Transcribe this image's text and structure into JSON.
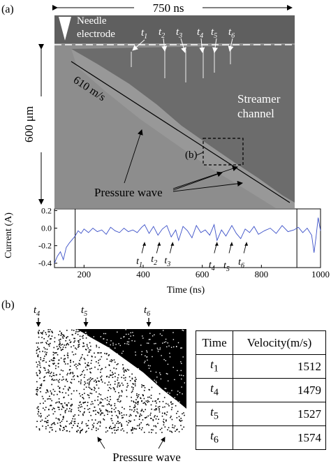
{
  "panel_a": {
    "label": "(a)",
    "duration": "750 ns",
    "height": "600 μm",
    "needle_line1": "Needle",
    "needle_line2": "electrode",
    "velocity": "610 m/s",
    "streamer_line1": "Streamer",
    "streamer_line2": "channel",
    "inset_label": "(b)",
    "pressure_wave": "Pressure wave",
    "times": [
      "1",
      "2",
      "3",
      "4",
      "5",
      "6"
    ],
    "colors": {
      "image_bg": "#8d8d8d",
      "top_band": "#5f5f5f",
      "dark_region": "#6c6c6c",
      "streamer_dash": "#ffffff"
    }
  },
  "chart_data": {
    "type": "line",
    "title": "",
    "xlabel": "Time (ns)",
    "ylabel": "Current (A)",
    "xlim": [
      100,
      1000
    ],
    "ylim": [
      -0.45,
      0.22
    ],
    "xticks": [
      "200",
      "400",
      "600",
      "800",
      "1000"
    ],
    "yticks": [
      "0.2",
      "0.0",
      "-0.2",
      "-0.4"
    ],
    "window_markers_x": [
      170,
      920
    ],
    "series": [
      {
        "color": "#3b50c8",
        "x": [
          100,
          110,
          120,
          130,
          140,
          150,
          160,
          170,
          180,
          190,
          200,
          215,
          230,
          245,
          260,
          275,
          290,
          305,
          320,
          335,
          350,
          365,
          380,
          395,
          405,
          420,
          435,
          450,
          465,
          480,
          495,
          510,
          520,
          535,
          550,
          565,
          580,
          595,
          610,
          625,
          640,
          650,
          665,
          680,
          700,
          715,
          730,
          745,
          760,
          775,
          790,
          810,
          830,
          850,
          870,
          890,
          910,
          925,
          940,
          955,
          970,
          978,
          985,
          992,
          1000
        ],
        "y": [
          -0.4,
          -0.32,
          -0.27,
          -0.36,
          -0.22,
          -0.17,
          -0.13,
          -0.09,
          -0.03,
          -0.06,
          -0.01,
          -0.05,
          0.0,
          -0.04,
          -0.02,
          -0.07,
          0.01,
          -0.03,
          -0.05,
          0.0,
          -0.04,
          -0.02,
          -0.05,
          0.01,
          0.04,
          -0.06,
          0.02,
          -0.08,
          -0.01,
          0.03,
          -0.1,
          -0.02,
          -0.14,
          0.02,
          -0.03,
          -0.11,
          0.03,
          -0.05,
          -0.02,
          -0.08,
          0.04,
          -0.14,
          -0.02,
          -0.09,
          0.03,
          -0.06,
          -0.12,
          -0.01,
          -0.05,
          0.02,
          -0.07,
          -0.03,
          0.0,
          -0.06,
          0.03,
          -0.04,
          -0.02,
          0.01,
          -0.05,
          0.0,
          -0.08,
          -0.28,
          -0.1,
          0.12,
          -0.03
        ]
      }
    ],
    "markers": [
      {
        "label": "1",
        "x": 405
      },
      {
        "label": "2",
        "x": 455
      },
      {
        "label": "3",
        "x": 500
      },
      {
        "label": "4",
        "x": 650
      },
      {
        "label": "5",
        "x": 700
      },
      {
        "label": "6",
        "x": 750
      }
    ]
  },
  "panel_b": {
    "label": "(b)",
    "times": [
      "4",
      "5",
      "6"
    ],
    "pressure_wave": "Pressure wave",
    "table": {
      "headers": [
        "Time",
        "Velocity(m/s)"
      ],
      "rows": [
        {
          "t": "1",
          "velocity": "1512"
        },
        {
          "t": "4",
          "velocity": "1479"
        },
        {
          "t": "5",
          "velocity": "1527"
        },
        {
          "t": "6",
          "velocity": "1574"
        }
      ]
    }
  }
}
